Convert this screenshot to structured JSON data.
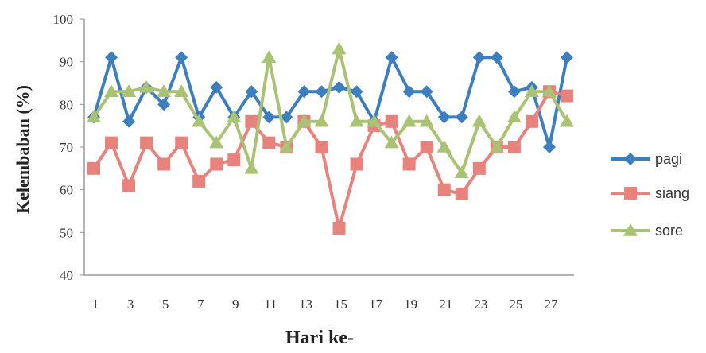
{
  "chart_data": {
    "type": "line",
    "title": "",
    "xlabel": "Hari  ke-",
    "ylabel": "Kelembaban (%)",
    "ylim": [
      40,
      100
    ],
    "yticks": [
      40,
      50,
      60,
      70,
      80,
      90,
      100
    ],
    "xlim": [
      1,
      28
    ],
    "xticks": [
      1,
      3,
      5,
      7,
      9,
      11,
      13,
      15,
      17,
      19,
      21,
      23,
      25,
      27
    ],
    "x": [
      1,
      2,
      3,
      4,
      5,
      6,
      7,
      8,
      9,
      10,
      11,
      12,
      13,
      14,
      15,
      16,
      17,
      18,
      19,
      20,
      21,
      22,
      23,
      24,
      25,
      26,
      27,
      28
    ],
    "grid": false,
    "legend_position": "right",
    "series": [
      {
        "name": "pagi",
        "color": "#3d7ebf",
        "marker": "diamond",
        "values": [
          77,
          91,
          76,
          84,
          80,
          91,
          77,
          84,
          77,
          83,
          77,
          77,
          83,
          83,
          84,
          83,
          76,
          91,
          83,
          83,
          77,
          77,
          91,
          91,
          83,
          84,
          70,
          91
        ]
      },
      {
        "name": "siang",
        "color": "#e8827c",
        "marker": "square",
        "values": [
          65,
          71,
          61,
          71,
          66,
          71,
          62,
          66,
          67,
          76,
          71,
          70,
          76,
          70,
          51,
          66,
          75,
          76,
          66,
          70,
          60,
          59,
          65,
          70,
          70,
          76,
          83,
          82
        ]
      },
      {
        "name": "sore",
        "color": "#a9c273",
        "marker": "triangle",
        "values": [
          77,
          83,
          83,
          84,
          83,
          83,
          76,
          71,
          77,
          65,
          91,
          70,
          76,
          76,
          93,
          76,
          76,
          71,
          76,
          76,
          70,
          64,
          76,
          70,
          77,
          83,
          83,
          76
        ]
      }
    ]
  }
}
